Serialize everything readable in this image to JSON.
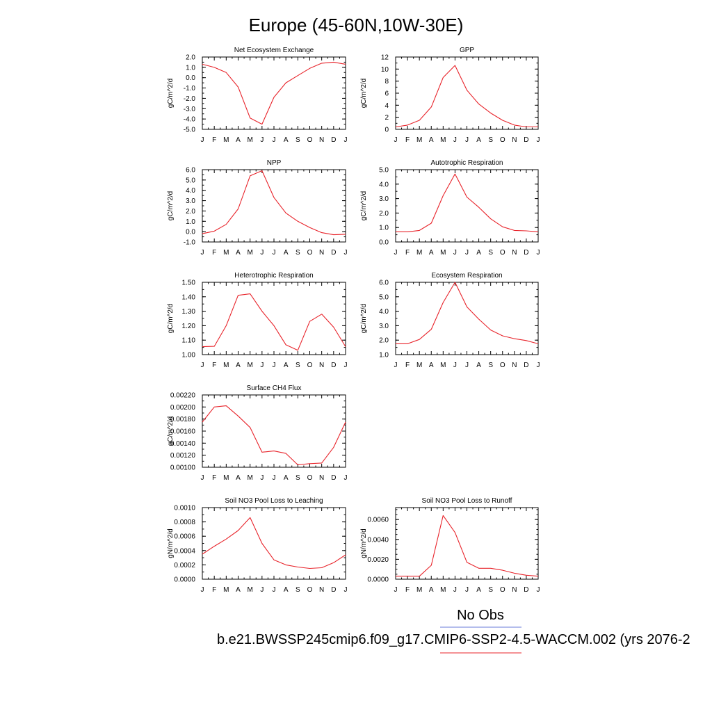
{
  "page": {
    "title": "Europe (45-60N,10W-30E)",
    "legend_no_obs": "No Obs",
    "case_label": "b.e21.BWSSP245cmip6.f09_g17.CMIP6-SSP2-4.5-WACCM.002 (yrs 2076-2",
    "colors": {
      "model_line": "#e8232a",
      "obs_line": "#6a7bd8",
      "axis": "#000000"
    }
  },
  "chart_data": [
    {
      "type": "line",
      "title": "Net Ecosystem Exchange",
      "ylabel": "gC/m^2/d",
      "categories": [
        "J",
        "F",
        "M",
        "A",
        "M",
        "J",
        "J",
        "A",
        "S",
        "O",
        "N",
        "D",
        "J"
      ],
      "values": [
        1.3,
        1.0,
        0.5,
        -0.9,
        -3.9,
        -4.5,
        -1.9,
        -0.5,
        0.2,
        0.9,
        1.4,
        1.5,
        1.3
      ],
      "ylim": [
        -5.0,
        2.0
      ],
      "yticks": [
        "-5.0",
        "-4.0",
        "-3.0",
        "-2.0",
        "-1.0",
        "0.0",
        "1.0",
        "2.0"
      ],
      "yminor": 0.5
    },
    {
      "type": "line",
      "title": "GPP",
      "ylabel": "gC/m^2/d",
      "categories": [
        "J",
        "F",
        "M",
        "A",
        "M",
        "J",
        "J",
        "A",
        "S",
        "O",
        "N",
        "D",
        "J"
      ],
      "values": [
        0.4,
        0.7,
        1.5,
        3.7,
        8.6,
        10.6,
        6.5,
        4.2,
        2.7,
        1.5,
        0.7,
        0.4,
        0.4
      ],
      "ylim": [
        0,
        12
      ],
      "yticks": [
        "0",
        "2",
        "4",
        "6",
        "8",
        "10",
        "12"
      ],
      "yminor": 1
    },
    {
      "type": "line",
      "title": "NPP",
      "ylabel": "gC/m^2/d",
      "categories": [
        "J",
        "F",
        "M",
        "A",
        "M",
        "J",
        "J",
        "A",
        "S",
        "O",
        "N",
        "D",
        "J"
      ],
      "values": [
        -0.2,
        0.05,
        0.7,
        2.2,
        5.4,
        5.9,
        3.3,
        1.8,
        1.0,
        0.4,
        -0.1,
        -0.3,
        -0.25
      ],
      "ylim": [
        -1.0,
        6.0
      ],
      "yticks": [
        "-1.0",
        "0.0",
        "1.0",
        "2.0",
        "3.0",
        "4.0",
        "5.0",
        "6.0"
      ],
      "yminor": 0.5
    },
    {
      "type": "line",
      "title": "Autotrophic Respiration",
      "ylabel": "gC/m^2/d",
      "categories": [
        "J",
        "F",
        "M",
        "A",
        "M",
        "J",
        "J",
        "A",
        "S",
        "O",
        "N",
        "D",
        "J"
      ],
      "values": [
        0.7,
        0.7,
        0.8,
        1.3,
        3.2,
        4.7,
        3.1,
        2.4,
        1.6,
        1.05,
        0.8,
        0.77,
        0.7
      ],
      "ylim": [
        0.0,
        5.0
      ],
      "yticks": [
        "0.0",
        "1.0",
        "2.0",
        "3.0",
        "4.0",
        "5.0"
      ],
      "yminor": 0.5
    },
    {
      "type": "line",
      "title": "Heterotrophic Respiration",
      "ylabel": "gC/m^2/d",
      "categories": [
        "J",
        "F",
        "M",
        "A",
        "M",
        "J",
        "J",
        "A",
        "S",
        "O",
        "N",
        "D",
        "J"
      ],
      "values": [
        1.055,
        1.057,
        1.2,
        1.41,
        1.42,
        1.3,
        1.2,
        1.068,
        1.03,
        1.23,
        1.28,
        1.19,
        1.055
      ],
      "ylim": [
        1.0,
        1.5
      ],
      "yticks": [
        "1.00",
        "1.10",
        "1.20",
        "1.30",
        "1.40",
        "1.50"
      ],
      "yminor": 0.05
    },
    {
      "type": "line",
      "title": "Ecosystem Respiration",
      "ylabel": "gC/m^2/d",
      "categories": [
        "J",
        "F",
        "M",
        "A",
        "M",
        "J",
        "J",
        "A",
        "S",
        "O",
        "N",
        "D",
        "J"
      ],
      "values": [
        1.75,
        1.75,
        2.05,
        2.75,
        4.6,
        6.0,
        4.3,
        3.45,
        2.7,
        2.3,
        2.1,
        1.97,
        1.75
      ],
      "ylim": [
        1.0,
        6.0
      ],
      "yticks": [
        "1.0",
        "2.0",
        "3.0",
        "4.0",
        "5.0",
        "6.0"
      ],
      "yminor": 0.5
    },
    {
      "type": "line",
      "title": "Surface CH4 Flux",
      "ylabel": "gC/m^2/d",
      "categories": [
        "J",
        "F",
        "M",
        "A",
        "M",
        "J",
        "J",
        "A",
        "S",
        "O",
        "N",
        "D",
        "J"
      ],
      "values": [
        0.00175,
        0.002,
        0.00202,
        0.00185,
        0.00166,
        0.00125,
        0.00127,
        0.00123,
        0.00104,
        0.00106,
        0.00107,
        0.00133,
        0.00175
      ],
      "ylim": [
        0.001,
        0.0022
      ],
      "yticks": [
        "0.00100",
        "0.00120",
        "0.00140",
        "0.00160",
        "0.00180",
        "0.00200",
        "0.00220"
      ],
      "yminor": 0.0001
    },
    {
      "type": "line",
      "title": "Soil NO3 Pool Loss to Leaching",
      "ylabel": "gN/m^2/d",
      "categories": [
        "J",
        "F",
        "M",
        "A",
        "M",
        "J",
        "J",
        "A",
        "S",
        "O",
        "N",
        "D",
        "J"
      ],
      "values": [
        0.00035,
        0.00046,
        0.00056,
        0.00068,
        0.00086,
        0.0005,
        0.00027,
        0.0002,
        0.00017,
        0.00015,
        0.00016,
        0.00023,
        0.00034
      ],
      "ylim": [
        0.0,
        0.001
      ],
      "yticks": [
        "0.0000",
        "0.0002",
        "0.0004",
        "0.0006",
        "0.0008",
        "0.0010"
      ],
      "yminor": 0.0001
    },
    {
      "type": "line",
      "title": "Soil NO3 Pool Loss to Runoff",
      "ylabel": "gN/m^2/d",
      "categories": [
        "J",
        "F",
        "M",
        "A",
        "M",
        "J",
        "J",
        "A",
        "S",
        "O",
        "N",
        "D",
        "J"
      ],
      "values": [
        0.0003,
        0.0003,
        0.0003,
        0.0014,
        0.0064,
        0.0047,
        0.0017,
        0.0011,
        0.0011,
        0.0009,
        0.0006,
        0.0004,
        0.0003
      ],
      "ylim": [
        0.0,
        0.0072
      ],
      "yticks": [
        "0.0000",
        "0.0020",
        "0.0040",
        "0.0060"
      ],
      "ytick_values": [
        0,
        0.002,
        0.004,
        0.006
      ],
      "yminor": 0.0005
    }
  ]
}
